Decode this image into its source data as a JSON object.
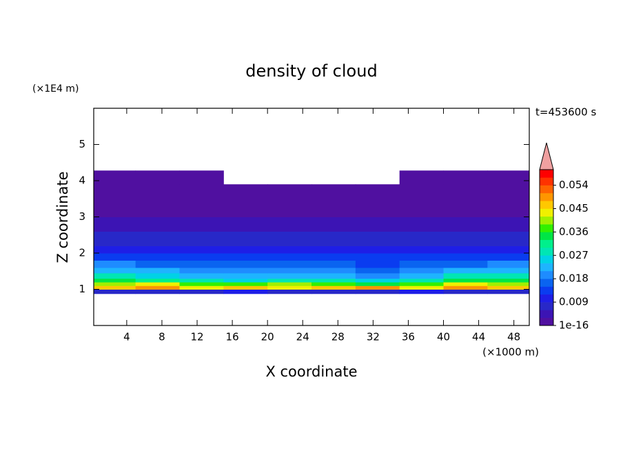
{
  "chart_data": {
    "type": "contour",
    "title": "density of cloud",
    "x_label": "X coordinate",
    "y_label": "Z coordinate",
    "x_unit": "(×1000 m)",
    "y_unit": "(×1E4 m)",
    "annotation": "t=453600 s",
    "xlim": [
      0.25,
      49.75
    ],
    "xticks": [
      4,
      8,
      12,
      16,
      20,
      24,
      28,
      32,
      36,
      40,
      44,
      48
    ],
    "ylim": [
      0,
      6
    ],
    "yticks": [
      1,
      2,
      3,
      4,
      5
    ],
    "x_edges": [
      0.25,
      5,
      10,
      15,
      20,
      25,
      30,
      35,
      40,
      45,
      49.75
    ],
    "z_edges": [
      0.88,
      1.0,
      1.1,
      1.2,
      1.3,
      1.45,
      1.6,
      1.8,
      2.0,
      2.2,
      2.6,
      3.0,
      3.4,
      3.8,
      3.9,
      4.28
    ],
    "values": [
      [
        0.008,
        0.007,
        0.008,
        0.009,
        0.008,
        0.007,
        0.008,
        0.009,
        0.008,
        0.008
      ],
      [
        0.046,
        0.05,
        0.044,
        0.047,
        0.042,
        0.045,
        0.048,
        0.043,
        0.05,
        0.046
      ],
      [
        0.04,
        0.043,
        0.038,
        0.036,
        0.039,
        0.037,
        0.035,
        0.038,
        0.044,
        0.041
      ],
      [
        0.034,
        0.031,
        0.027,
        0.026,
        0.029,
        0.027,
        0.025,
        0.028,
        0.033,
        0.035
      ],
      [
        0.028,
        0.026,
        0.022,
        0.021,
        0.023,
        0.022,
        0.02,
        0.022,
        0.027,
        0.029
      ],
      [
        0.022,
        0.021,
        0.019,
        0.018,
        0.019,
        0.018,
        0.017,
        0.019,
        0.021,
        0.023
      ],
      [
        0.018,
        0.017,
        0.016,
        0.015,
        0.016,
        0.015,
        0.014,
        0.016,
        0.017,
        0.018
      ],
      [
        0.014,
        0.013,
        0.013,
        0.012,
        0.013,
        0.012,
        0.012,
        0.013,
        0.014,
        0.014
      ],
      [
        0.011,
        0.01,
        0.01,
        0.01,
        0.011,
        0.01,
        0.01,
        0.01,
        0.011,
        0.011
      ],
      [
        0.008,
        0.008,
        0.007,
        0.007,
        0.008,
        0.007,
        0.007,
        0.008,
        0.008,
        0.008
      ],
      [
        0.005,
        0.005,
        0.004,
        0.004,
        0.005,
        0.004,
        0.004,
        0.005,
        0.005,
        0.005
      ],
      [
        0.002,
        0.002,
        0.002,
        0.002,
        0.002,
        0.002,
        0.002,
        0.002,
        0.002,
        0.002
      ],
      [
        0.001,
        0.001,
        0.001,
        0.001,
        0.001,
        0.001,
        0.001,
        0.001,
        0.001,
        0.001
      ],
      [
        0.001,
        0.001,
        0.001,
        0.001,
        0.001,
        0.001,
        0.001,
        0.001,
        0.001,
        0.001
      ],
      [
        0.001,
        0.001,
        0.001,
        null,
        null,
        null,
        null,
        0.001,
        0.001,
        0.001
      ]
    ],
    "clim": [
      0,
      0.06
    ],
    "colors": [
      "#5010a0",
      "#3c14b4",
      "#2828c8",
      "#1e1ee6",
      "#0a3cf0",
      "#0a64f0",
      "#1e8cff",
      "#1eb4ff",
      "#00d2e6",
      "#00e6b4",
      "#00f08c",
      "#00e646",
      "#32f000",
      "#a0f000",
      "#f0f000",
      "#ffc800",
      "#ff9600",
      "#ff6400",
      "#ff3200",
      "#ff0000"
    ],
    "extend_color": "#f0a0a0",
    "cticks": [
      1e-16,
      0.009,
      0.018,
      0.027,
      0.036,
      0.045,
      0.054
    ]
  }
}
